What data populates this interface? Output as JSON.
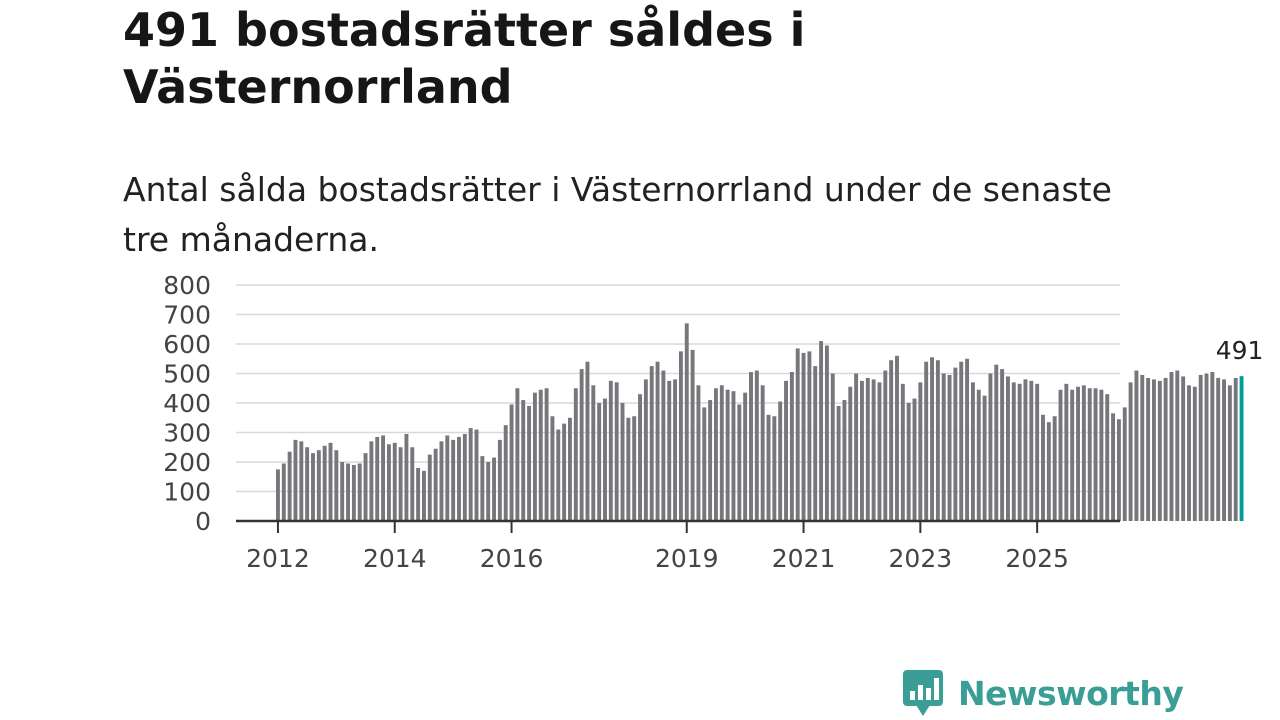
{
  "header": {
    "title": "491 bostadsrätter såldes i Västernorrland",
    "subtitle": "Antal sålda bostadsrätter i Västernorrland under de senaste tre månaderna."
  },
  "brand": {
    "name": "Newsworthy",
    "color": "#3a9e96",
    "icon": "chart-bubble-icon"
  },
  "colors": {
    "bar": "#76767b",
    "highlight": "#009e9a",
    "grid": "#d9d9d9"
  },
  "chart_data": {
    "type": "bar",
    "title": "Antal sålda bostadsrätter i Västernorrland",
    "xlabel": "",
    "ylabel": "",
    "ylim": [
      0,
      800
    ],
    "yticks": [
      "0",
      "100",
      "200",
      "300",
      "400",
      "500",
      "600",
      "700",
      "800"
    ],
    "xticks": [
      {
        "label": "2012",
        "index": 0
      },
      {
        "label": "2014",
        "index": 20
      },
      {
        "label": "2016",
        "index": 40
      },
      {
        "label": "2019",
        "index": 70
      },
      {
        "label": "2021",
        "index": 90
      },
      {
        "label": "2023",
        "index": 110
      },
      {
        "label": "2025",
        "index": 130
      }
    ],
    "annotation": "491",
    "values": [
      175,
      195,
      235,
      275,
      270,
      250,
      230,
      240,
      255,
      265,
      240,
      200,
      195,
      190,
      195,
      230,
      270,
      285,
      290,
      260,
      265,
      250,
      295,
      250,
      180,
      170,
      225,
      245,
      270,
      290,
      275,
      285,
      295,
      315,
      310,
      220,
      200,
      215,
      275,
      325,
      395,
      450,
      410,
      390,
      435,
      445,
      450,
      355,
      310,
      330,
      350,
      450,
      515,
      540,
      460,
      400,
      415,
      475,
      470,
      400,
      350,
      355,
      430,
      480,
      525,
      540,
      510,
      475,
      480,
      575,
      670,
      580,
      460,
      385,
      410,
      450,
      460,
      445,
      440,
      395,
      435,
      505,
      510,
      460,
      360,
      355,
      405,
      475,
      505,
      585,
      570,
      575,
      525,
      610,
      595,
      500,
      390,
      410,
      455,
      500,
      475,
      485,
      480,
      470,
      510,
      545,
      560,
      465,
      400,
      415,
      470,
      540,
      555,
      545,
      500,
      495,
      520,
      540,
      550,
      470,
      445,
      425,
      500,
      530,
      515,
      490,
      470,
      465,
      480,
      475,
      465,
      360,
      335,
      355,
      445,
      465,
      445,
      455,
      460,
      450,
      450,
      445,
      430,
      365,
      345,
      385,
      470,
      510,
      495,
      485,
      480,
      475,
      485,
      505,
      510,
      490,
      460,
      455,
      495,
      500,
      505,
      485,
      480,
      460,
      485,
      491
    ]
  }
}
